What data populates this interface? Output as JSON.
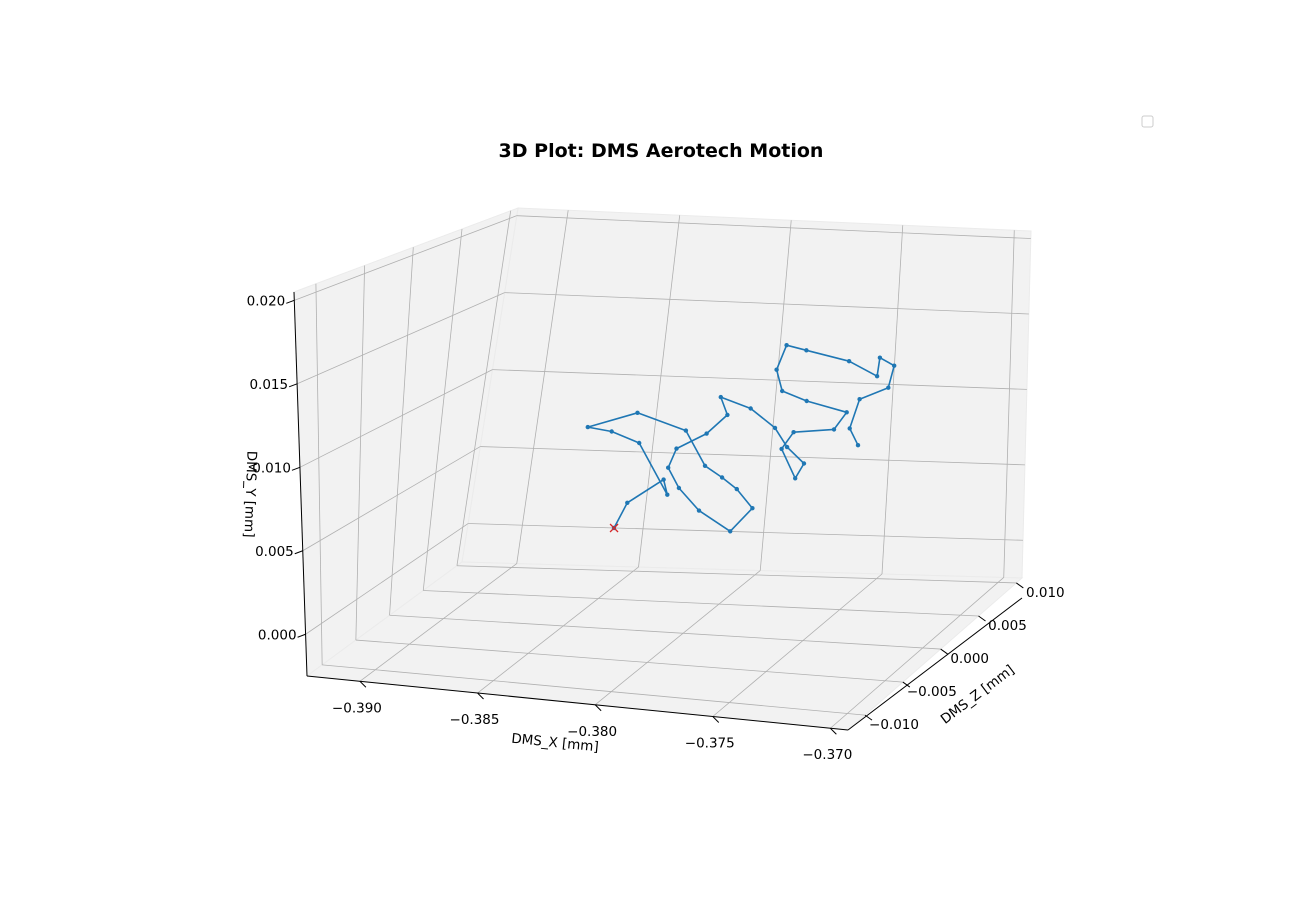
{
  "chart_data": {
    "type": "line3d",
    "title": "3D Plot: DMS Aerotech Motion",
    "xlabel": "DMS_X [mm]",
    "ylabel": "DMS_Y [mm]",
    "zlabel": "DMS_Z [mm]",
    "x_ticks": [
      "−0.390",
      "−0.385",
      "−0.380",
      "−0.375",
      "−0.370"
    ],
    "y_ticks": [
      "0.000",
      "0.005",
      "0.010",
      "0.015",
      "0.020"
    ],
    "z_ticks": [
      "−0.010",
      "−0.005",
      "0.000",
      "0.005",
      "0.010"
    ],
    "xlim": [
      -0.3925,
      -0.3695
    ],
    "ylim": [
      -0.0025,
      0.0205
    ],
    "zlim": [
      0.0125,
      -0.0125
    ],
    "legend": "top-right (empty)",
    "grid": true,
    "series": [
      {
        "color": "#1f77b4",
        "points": [
          [
            -0.3834,
            0.0037,
            -0.0012
          ],
          [
            -0.383,
            0.0052,
            -0.0016
          ],
          [
            -0.3815,
            0.0068,
            -0.0016
          ],
          [
            -0.3812,
            0.006,
            -0.0012
          ],
          [
            -0.3826,
            0.009,
            -0.0016
          ],
          [
            -0.3836,
            0.0098,
            -0.001
          ],
          [
            -0.3845,
            0.0101,
            -0.0006
          ],
          [
            -0.3824,
            0.0112,
            -0.0006
          ],
          [
            -0.3805,
            0.0101,
            -0.0012
          ],
          [
            -0.3797,
            0.0079,
            -0.0014
          ],
          [
            -0.3789,
            0.0073,
            -0.0012
          ],
          [
            -0.3782,
            0.0067,
            -0.001
          ],
          [
            -0.3774,
            0.0057,
            -0.0006
          ],
          [
            -0.3782,
            0.0043,
            -0.0002
          ],
          [
            -0.3796,
            0.0054,
            -0.0004
          ],
          [
            -0.3806,
            0.0066,
            -0.0008
          ],
          [
            -0.3812,
            0.0077,
            -0.0012
          ],
          [
            -0.381,
            0.0088,
            -0.0016
          ],
          [
            -0.3798,
            0.0098,
            -0.0018
          ],
          [
            -0.379,
            0.011,
            -0.002
          ],
          [
            -0.3795,
            0.0119,
            -0.0026
          ],
          [
            -0.3782,
            0.0113,
            -0.0026
          ],
          [
            -0.3772,
            0.0101,
            -0.0028
          ],
          [
            -0.3766,
            0.009,
            -0.0026
          ],
          [
            -0.3758,
            0.0081,
            -0.0024
          ],
          [
            -0.3761,
            0.0072,
            -0.0022
          ],
          [
            -0.3768,
            0.0089,
            -0.0025
          ],
          [
            -0.3764,
            0.0099,
            -0.0028
          ],
          [
            -0.3748,
            0.0101,
            -0.0032
          ],
          [
            -0.3744,
            0.0111,
            -0.0036
          ],
          [
            -0.376,
            0.0118,
            -0.0032
          ],
          [
            -0.377,
            0.0124,
            -0.003
          ],
          [
            -0.3774,
            0.0136,
            -0.0034
          ],
          [
            -0.3772,
            0.015,
            -0.004
          ],
          [
            -0.3766,
            0.0145,
            -0.0048
          ],
          [
            -0.375,
            0.0137,
            -0.0056
          ],
          [
            -0.3739,
            0.0127,
            -0.006
          ],
          [
            -0.374,
            0.0137,
            -0.0066
          ],
          [
            -0.3735,
            0.0131,
            -0.007
          ],
          [
            -0.3736,
            0.0118,
            -0.0066
          ],
          [
            -0.3745,
            0.0113,
            -0.0056
          ],
          [
            -0.3747,
            0.0096,
            -0.005
          ],
          [
            -0.3742,
            0.0087,
            -0.0046
          ]
        ]
      }
    ],
    "markers": [
      {
        "symbol": "x",
        "color": "#d62728",
        "point": [
          -0.3834,
          0.0037,
          -0.0012
        ]
      }
    ]
  }
}
